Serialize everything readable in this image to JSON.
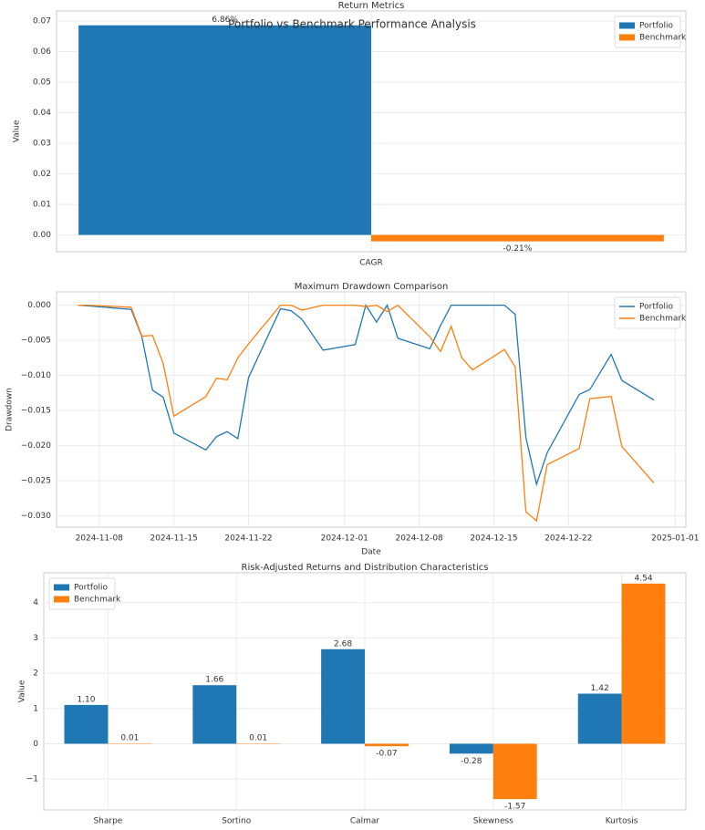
{
  "title": "Portfolio vs Benchmark Performance Analysis",
  "chart_data": [
    {
      "type": "bar",
      "title": "Return Metrics",
      "ylabel": "Value",
      "categories": [
        "CAGR"
      ],
      "series": [
        {
          "name": "Portfolio",
          "color": "#1f77b4",
          "values": [
            0.0686
          ],
          "value_labels": [
            "6.86%"
          ]
        },
        {
          "name": "Benchmark",
          "color": "#ff7f0e",
          "values": [
            -0.0021
          ],
          "value_labels": [
            "-0.21%"
          ]
        }
      ],
      "ylim": [
        -0.0055,
        0.0733
      ],
      "yticks": [
        {
          "value": 0,
          "label": "0.00"
        },
        {
          "value": 0.01,
          "label": "0.01"
        },
        {
          "value": 0.02,
          "label": "0.02"
        },
        {
          "value": 0.03,
          "label": "0.03"
        },
        {
          "value": 0.04,
          "label": "0.04"
        },
        {
          "value": 0.05,
          "label": "0.05"
        },
        {
          "value": 0.06,
          "label": "0.06"
        },
        {
          "value": 0.07,
          "label": "0.07"
        }
      ],
      "grid": true,
      "legend": "upper right"
    },
    {
      "type": "line",
      "title": "Maximum Drawdown Comparison",
      "xlabel": "Date",
      "ylabel": "Drawdown",
      "x": [
        "2024-11-06",
        "2024-11-07",
        "2024-11-11",
        "2024-11-12",
        "2024-11-13",
        "2024-11-14",
        "2024-11-15",
        "2024-11-18",
        "2024-11-19",
        "2024-11-20",
        "2024-11-21",
        "2024-11-22",
        "2024-11-25",
        "2024-11-26",
        "2024-11-27",
        "2024-11-29",
        "2024-12-02",
        "2024-12-03",
        "2024-12-04",
        "2024-12-05",
        "2024-12-06",
        "2024-12-09",
        "2024-12-10",
        "2024-12-11",
        "2024-12-12",
        "2024-12-13",
        "2024-12-16",
        "2024-12-17",
        "2024-12-18",
        "2024-12-19",
        "2024-12-20",
        "2024-12-23",
        "2024-12-24",
        "2024-12-26",
        "2024-12-27",
        "2024-12-30"
      ],
      "series": [
        {
          "name": "Portfolio",
          "color": "#1f77b4",
          "values": [
            0,
            -0.0001,
            -0.0006,
            -0.0045,
            -0.0121,
            -0.0131,
            -0.0182,
            -0.0206,
            -0.0187,
            -0.018,
            -0.019,
            -0.0103,
            -0.0005,
            -0.0008,
            -0.002,
            -0.0064,
            -0.0056,
            0,
            -0.0024,
            0,
            -0.0047,
            -0.0062,
            -0.0029,
            0,
            0,
            0,
            0,
            -0.0013,
            -0.0188,
            -0.0255,
            -0.021,
            -0.0127,
            -0.012,
            -0.007,
            -0.0107,
            -0.0135
          ]
        },
        {
          "name": "Benchmark",
          "color": "#ff7f0e",
          "values": [
            0,
            0,
            -0.0003,
            -0.0044,
            -0.0043,
            -0.0083,
            -0.0158,
            -0.013,
            -0.0104,
            -0.0106,
            -0.0075,
            -0.0055,
            0,
            0,
            -0.0007,
            0,
            0,
            -0.0002,
            0,
            -0.0009,
            0,
            -0.0045,
            -0.0066,
            -0.003,
            -0.0075,
            -0.0092,
            -0.0063,
            -0.0088,
            -0.0294,
            -0.0307,
            -0.0227,
            -0.0204,
            -0.0133,
            -0.013,
            -0.0201,
            -0.0253
          ]
        }
      ],
      "xlim": [
        "2024-11-04",
        "2025-01-02"
      ],
      "xticks": [
        "2024-11-08",
        "2024-11-15",
        "2024-11-22",
        "2024-12-01",
        "2024-12-08",
        "2024-12-15",
        "2024-12-22",
        "2025-01-01"
      ],
      "ylim": [
        -0.0316,
        0.0019
      ],
      "yticks": [
        {
          "value": 0,
          "label": "0.000"
        },
        {
          "value": -0.005,
          "label": "−0.005"
        },
        {
          "value": -0.01,
          "label": "−0.010"
        },
        {
          "value": -0.015,
          "label": "−0.015"
        },
        {
          "value": -0.02,
          "label": "−0.020"
        },
        {
          "value": -0.025,
          "label": "−0.025"
        },
        {
          "value": -0.03,
          "label": "−0.030"
        }
      ],
      "grid": true,
      "legend": "upper right"
    },
    {
      "type": "bar",
      "title": "Risk-Adjusted Returns and Distribution Characteristics",
      "ylabel": "Value",
      "categories": [
        "Sharpe",
        "Sortino",
        "Calmar",
        "Skewness",
        "Kurtosis"
      ],
      "series": [
        {
          "name": "Portfolio",
          "color": "#1f77b4",
          "values": [
            1.1,
            1.66,
            2.68,
            -0.28,
            1.42
          ],
          "value_labels": [
            "1.10",
            "1.66",
            "2.68",
            "-0.28",
            "1.42"
          ]
        },
        {
          "name": "Benchmark",
          "color": "#ff7f0e",
          "values": [
            0.01,
            0.01,
            -0.07,
            -1.57,
            4.54
          ],
          "value_labels": [
            "0.01",
            "0.01",
            "-0.07",
            "-1.57",
            "4.54"
          ]
        }
      ],
      "ylim": [
        -1.876,
        4.846
      ],
      "yticks": [
        {
          "value": -1,
          "label": "−1"
        },
        0,
        1,
        2,
        3,
        4
      ],
      "grid": true,
      "legend": "upper left"
    }
  ]
}
